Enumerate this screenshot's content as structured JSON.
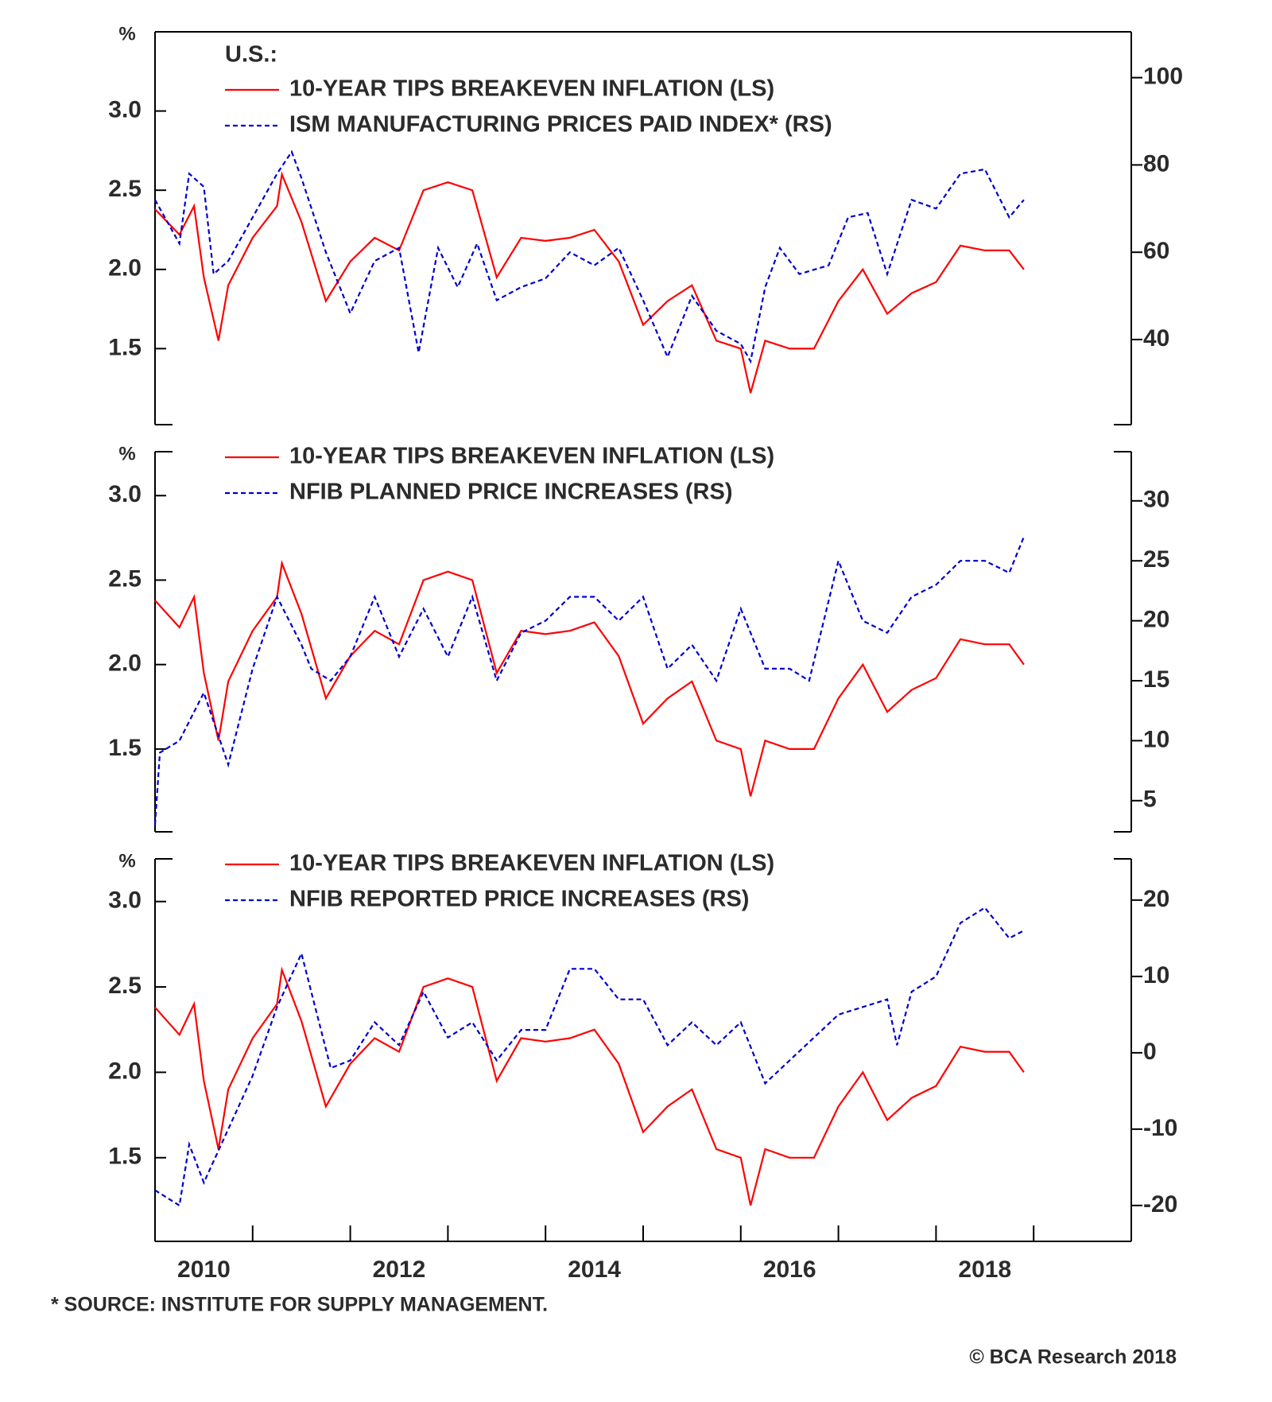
{
  "footnote": "* SOURCE: INSTITUTE FOR SUPPLY MANAGEMENT.",
  "credit": "© BCA Research 2018",
  "chart_data": [
    {
      "type": "line",
      "title": "U.S.:",
      "ylabel": "%",
      "xlim": [
        2010,
        2020
      ],
      "ylim": [
        1.02,
        3.5
      ],
      "yticks": [
        1.5,
        {
          "value": 2,
          "label": "2.0"
        },
        2.5,
        {
          "value": 3,
          "label": "3.0"
        }
      ],
      "y2lim": [
        20.5,
        110.5
      ],
      "y2ticks": [
        40,
        60,
        80,
        100
      ],
      "series": [
        {
          "name": "10-YEAR TIPS BREAKEVEN INFLATION (LS)",
          "color": "#ff0000",
          "style": "solid",
          "x": [
            2010,
            2010.25,
            2010.4,
            2010.5,
            2010.65,
            2010.75,
            2011,
            2011.25,
            2011.3,
            2011.5,
            2011.75,
            2012,
            2012.25,
            2012.5,
            2012.75,
            2013,
            2013.25,
            2013.5,
            2013.75,
            2014,
            2014.25,
            2014.5,
            2014.75,
            2015,
            2015.25,
            2015.5,
            2015.75,
            2016,
            2016.1,
            2016.25,
            2016.5,
            2016.75,
            2017,
            2017.25,
            2017.5,
            2017.75,
            2018,
            2018.25,
            2018.5,
            2018.75,
            2018.9
          ],
          "values": [
            2.38,
            2.22,
            2.4,
            1.95,
            1.55,
            1.9,
            2.2,
            2.4,
            2.6,
            2.3,
            1.8,
            2.05,
            2.2,
            2.12,
            2.5,
            2.55,
            2.5,
            1.95,
            2.2,
            2.18,
            2.2,
            2.25,
            2.05,
            1.65,
            1.8,
            1.9,
            1.55,
            1.5,
            1.22,
            1.55,
            1.5,
            1.5,
            1.8,
            2.0,
            1.72,
            1.85,
            1.92,
            2.15,
            2.12,
            2.12,
            2.0
          ]
        },
        {
          "name": "ISM MANUFACTURING PRICES PAID INDEX* (RS)",
          "color": "#0000cc",
          "style": "dashed",
          "axis": "y2",
          "x": [
            2010,
            2010.25,
            2010.35,
            2010.5,
            2010.6,
            2010.75,
            2011,
            2011.25,
            2011.4,
            2011.5,
            2011.75,
            2012,
            2012.25,
            2012.5,
            2012.7,
            2012.9,
            2013.1,
            2013.3,
            2013.5,
            2013.75,
            2014,
            2014.25,
            2014.5,
            2014.75,
            2015,
            2015.25,
            2015.5,
            2015.75,
            2016,
            2016.1,
            2016.25,
            2016.4,
            2016.6,
            2016.9,
            2017.1,
            2017.3,
            2017.5,
            2017.75,
            2018,
            2018.25,
            2018.5,
            2018.75,
            2018.9
          ],
          "values": [
            72,
            62,
            78,
            75,
            55,
            58,
            68,
            78,
            83,
            77,
            60,
            46,
            58,
            61,
            37,
            61,
            52,
            62,
            49,
            52,
            54,
            60,
            57,
            61,
            49,
            36,
            50,
            42,
            39,
            35,
            52,
            61,
            55,
            57,
            68,
            69,
            55,
            72,
            70,
            78,
            79,
            68,
            72
          ]
        }
      ]
    },
    {
      "type": "line",
      "ylabel": "%",
      "xlim": [
        2010,
        2020
      ],
      "ylim": [
        1.01,
        3.26
      ],
      "yticks": [
        1.5,
        {
          "value": 2,
          "label": "2.0"
        },
        2.5,
        {
          "value": 3,
          "label": "3.0"
        }
      ],
      "y2lim": [
        2.4,
        34.1
      ],
      "y2ticks": [
        5,
        10,
        15,
        20,
        25,
        30
      ],
      "series": [
        {
          "name": "10-YEAR TIPS BREAKEVEN INFLATION (LS)",
          "color": "#ff0000",
          "style": "solid",
          "x": [
            2010,
            2010.25,
            2010.4,
            2010.5,
            2010.65,
            2010.75,
            2011,
            2011.25,
            2011.3,
            2011.5,
            2011.75,
            2012,
            2012.25,
            2012.5,
            2012.75,
            2013,
            2013.25,
            2013.5,
            2013.75,
            2014,
            2014.25,
            2014.5,
            2014.75,
            2015,
            2015.25,
            2015.5,
            2015.75,
            2016,
            2016.1,
            2016.25,
            2016.5,
            2016.75,
            2017,
            2017.25,
            2017.5,
            2017.75,
            2018,
            2018.25,
            2018.5,
            2018.75,
            2018.9
          ],
          "values": [
            2.38,
            2.22,
            2.4,
            1.95,
            1.55,
            1.9,
            2.2,
            2.4,
            2.6,
            2.3,
            1.8,
            2.05,
            2.2,
            2.12,
            2.5,
            2.55,
            2.5,
            1.95,
            2.2,
            2.18,
            2.2,
            2.25,
            2.05,
            1.65,
            1.8,
            1.9,
            1.55,
            1.5,
            1.22,
            1.55,
            1.5,
            1.5,
            1.8,
            2.0,
            1.72,
            1.85,
            1.92,
            2.15,
            2.12,
            2.12,
            2.0
          ]
        },
        {
          "name": "NFIB PLANNED PRICE INCREASES (RS)",
          "color": "#0000cc",
          "style": "dashed",
          "axis": "y2",
          "x": [
            2010,
            2010.05,
            2010.25,
            2010.5,
            2010.75,
            2011,
            2011.25,
            2011.5,
            2011.6,
            2011.8,
            2012,
            2012.25,
            2012.5,
            2012.75,
            2013,
            2013.25,
            2013.5,
            2013.75,
            2014,
            2014.25,
            2014.5,
            2014.75,
            2015,
            2015.25,
            2015.5,
            2015.75,
            2016,
            2016.25,
            2016.5,
            2016.7,
            2017,
            2017.25,
            2017.5,
            2017.75,
            2018,
            2018.25,
            2018.5,
            2018.75,
            2018.9
          ],
          "values": [
            3,
            9,
            10,
            14,
            8,
            16,
            22,
            18,
            16,
            15,
            17,
            22,
            17,
            21,
            17,
            22,
            15,
            19,
            20,
            22,
            22,
            20,
            22,
            16,
            18,
            15,
            21,
            16,
            16,
            15,
            25,
            20,
            19,
            22,
            23,
            25,
            25,
            24,
            27
          ]
        }
      ]
    },
    {
      "type": "line",
      "ylabel": "%",
      "xlim": [
        2010,
        2020
      ],
      "ylim": [
        1.01,
        3.25
      ],
      "yticks": [
        1.5,
        {
          "value": 2,
          "label": "2.0"
        },
        2.5,
        {
          "value": 3,
          "label": "3.0"
        }
      ],
      "y2lim": [
        -24.7,
        25.4
      ],
      "y2ticks": [
        -20,
        -10,
        0,
        10,
        20
      ],
      "xticks": [
        {
          "value": 2010.5,
          "label": "2010"
        },
        {
          "value": 2012.5,
          "label": "2012"
        },
        {
          "value": 2014.5,
          "label": "2014"
        },
        {
          "value": 2016.5,
          "label": "2016"
        },
        {
          "value": 2018.5,
          "label": "2018"
        }
      ],
      "xtick_marks": [
        2011,
        2012,
        2013,
        2014,
        2015,
        2016,
        2017,
        2018,
        2019
      ],
      "series": [
        {
          "name": "10-YEAR TIPS BREAKEVEN INFLATION (LS)",
          "color": "#ff0000",
          "style": "solid",
          "x": [
            2010,
            2010.25,
            2010.4,
            2010.5,
            2010.65,
            2010.75,
            2011,
            2011.25,
            2011.3,
            2011.5,
            2011.75,
            2012,
            2012.25,
            2012.5,
            2012.75,
            2013,
            2013.25,
            2013.5,
            2013.75,
            2014,
            2014.25,
            2014.5,
            2014.75,
            2015,
            2015.25,
            2015.5,
            2015.75,
            2016,
            2016.1,
            2016.25,
            2016.5,
            2016.75,
            2017,
            2017.25,
            2017.5,
            2017.75,
            2018,
            2018.25,
            2018.5,
            2018.75,
            2018.9
          ],
          "values": [
            2.38,
            2.22,
            2.4,
            1.95,
            1.55,
            1.9,
            2.2,
            2.4,
            2.6,
            2.3,
            1.8,
            2.05,
            2.2,
            2.12,
            2.5,
            2.55,
            2.5,
            1.95,
            2.2,
            2.18,
            2.2,
            2.25,
            2.05,
            1.65,
            1.8,
            1.9,
            1.55,
            1.5,
            1.22,
            1.55,
            1.5,
            1.5,
            1.8,
            2.0,
            1.72,
            1.85,
            1.92,
            2.15,
            2.12,
            2.12,
            2.0
          ]
        },
        {
          "name": "NFIB REPORTED PRICE INCREASES (RS)",
          "color": "#0000cc",
          "style": "dashed",
          "axis": "y2",
          "x": [
            2010,
            2010.25,
            2010.35,
            2010.5,
            2010.75,
            2011,
            2011.25,
            2011.5,
            2011.6,
            2011.8,
            2012,
            2012.25,
            2012.5,
            2012.75,
            2013,
            2013.25,
            2013.5,
            2013.75,
            2014,
            2014.25,
            2014.5,
            2014.75,
            2015,
            2015.25,
            2015.5,
            2015.75,
            2016,
            2016.25,
            2016.5,
            2016.75,
            2017,
            2017.25,
            2017.5,
            2017.6,
            2017.75,
            2018,
            2018.25,
            2018.5,
            2018.75,
            2018.9
          ],
          "values": [
            -18,
            -20,
            -12,
            -17,
            -10,
            -3,
            6,
            13,
            8,
            -2,
            -1,
            4,
            1,
            8,
            2,
            4,
            -1,
            3,
            3,
            11,
            11,
            7,
            7,
            1,
            4,
            1,
            4,
            -4,
            -1,
            2,
            5,
            6,
            7,
            1,
            8,
            10,
            17,
            19,
            15,
            16
          ]
        }
      ]
    }
  ]
}
